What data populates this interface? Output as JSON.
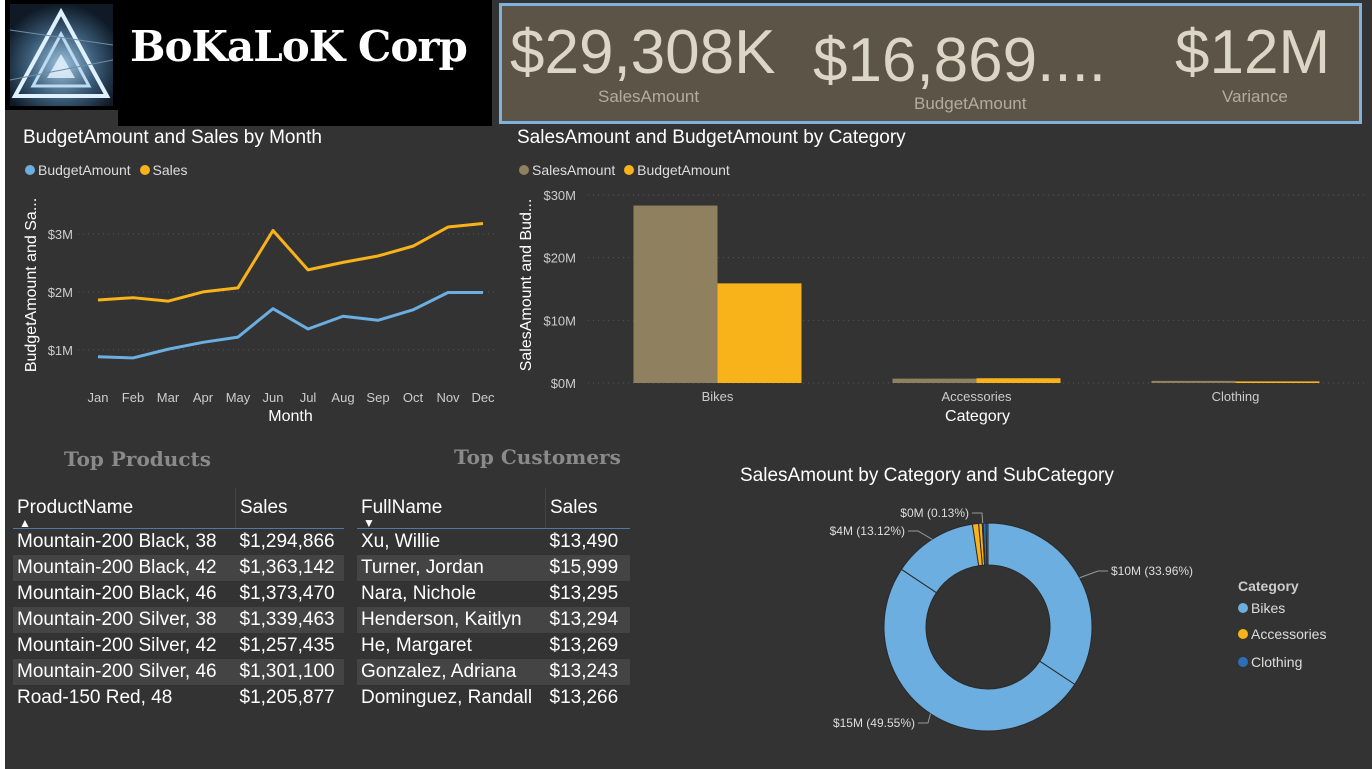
{
  "header": {
    "company_name": "BoKaLoK Corp",
    "logo_icon": "triangle-logo-icon",
    "kpis": [
      {
        "value": "$29,308K",
        "label": "SalesAmount"
      },
      {
        "value": "$16,869....",
        "label": "BudgetAmount"
      },
      {
        "value": "$12M",
        "label": "Variance"
      }
    ]
  },
  "colors": {
    "background": "#333333",
    "budget": "#6caee0",
    "sales": "#f8b21a",
    "sales_amount_bar": "#8f8060",
    "bikes": "#6caee0",
    "accessories": "#f8b21a",
    "clothing": "#2d6fb5"
  },
  "line_chart": {
    "title": "BudgetAmount and Sales by Month",
    "legend": [
      "BudgetAmount",
      "Sales"
    ]
  },
  "bar_chart": {
    "title": "SalesAmount and BudgetAmount by Category",
    "legend": [
      "SalesAmount",
      "BudgetAmount"
    ]
  },
  "donut_chart": {
    "title": "SalesAmount by Category and SubCategory",
    "legend_title": "Category",
    "legend": [
      "Bikes",
      "Accessories",
      "Clothing"
    ]
  },
  "chart_data": [
    {
      "type": "line",
      "title": "BudgetAmount and Sales by Month",
      "xlabel": "Month",
      "ylabel": "BudgetAmount and Sa...",
      "x": [
        "Jan",
        "Feb",
        "Mar",
        "Apr",
        "May",
        "Jun",
        "Jul",
        "Aug",
        "Sep",
        "Oct",
        "Nov",
        "Dec"
      ],
      "yticks": [
        "$1M",
        "$2M",
        "$3M"
      ],
      "ytick_values": [
        1000000,
        2000000,
        3000000
      ],
      "ylim": [
        600000,
        3500000
      ],
      "grid": true,
      "legend_position": "top-left",
      "series": [
        {
          "name": "BudgetAmount",
          "color": "#6caee0",
          "values": [
            880000,
            860000,
            1010000,
            1130000,
            1220000,
            1710000,
            1360000,
            1580000,
            1510000,
            1690000,
            1990000,
            1990000
          ]
        },
        {
          "name": "Sales",
          "color": "#f8b21a",
          "values": [
            1860000,
            1900000,
            1840000,
            2000000,
            2070000,
            3060000,
            2380000,
            2510000,
            2620000,
            2790000,
            3120000,
            3180000
          ]
        }
      ]
    },
    {
      "type": "bar",
      "title": "SalesAmount and BudgetAmount by Category",
      "xlabel": "Category",
      "ylabel": "SalesAmount and Bud...",
      "categories": [
        "Bikes",
        "Accessories",
        "Clothing"
      ],
      "yticks": [
        "$0M",
        "$10M",
        "$20M",
        "$30M"
      ],
      "ytick_values": [
        0,
        10000000,
        20000000,
        30000000
      ],
      "ylim": [
        0,
        30000000
      ],
      "grid": true,
      "legend_position": "top-left",
      "series": [
        {
          "name": "SalesAmount",
          "color": "#8f8060",
          "values": [
            28320000,
            700000,
            340000
          ]
        },
        {
          "name": "BudgetAmount",
          "color": "#f8b21a",
          "values": [
            15900000,
            760000,
            260000
          ]
        }
      ]
    },
    {
      "type": "pie",
      "title": "SalesAmount by Category and SubCategory",
      "legend_title": "Category",
      "legend_position": "right",
      "slices": [
        {
          "category": "Bikes",
          "label": "$10M (33.96%)",
          "percent": 33.96,
          "color": "#6caee0"
        },
        {
          "category": "Bikes",
          "label": "$15M (49.55%)",
          "percent": 49.55,
          "color": "#6caee0"
        },
        {
          "category": "Bikes",
          "label": "$4M (13.12%)",
          "percent": 13.12,
          "color": "#6caee0"
        },
        {
          "category": "Accessories",
          "label": "",
          "percent": 0.95,
          "color": "#f8b21a"
        },
        {
          "category": "Accessories",
          "label": "",
          "percent": 0.55,
          "color": "#f8b21a"
        },
        {
          "category": "Accessories",
          "label": "$0M (0.13%)",
          "percent": 0.13,
          "color": "#f8b21a"
        },
        {
          "category": "Clothing",
          "label": "",
          "percent": 0.45,
          "color": "#2d6fb5"
        },
        {
          "category": "Clothing",
          "label": "",
          "percent": 0.29,
          "color": "#2d6fb5"
        }
      ]
    },
    {
      "type": "table",
      "title": "Top Products",
      "columns": [
        "ProductName",
        "Sales"
      ],
      "rows": [
        [
          "Mountain-200 Black, 38",
          "$1,294,866"
        ],
        [
          "Mountain-200 Black, 42",
          "$1,363,142"
        ],
        [
          "Mountain-200 Black, 46",
          "$1,373,470"
        ],
        [
          "Mountain-200 Silver, 38",
          "$1,339,463"
        ],
        [
          "Mountain-200 Silver, 42",
          "$1,257,435"
        ],
        [
          "Mountain-200 Silver, 46",
          "$1,301,100"
        ],
        [
          "Road-150 Red, 48",
          "$1,205,877"
        ]
      ]
    },
    {
      "type": "table",
      "title": "Top Customers",
      "columns": [
        "FullName",
        "Sales"
      ],
      "rows": [
        [
          "Xu, Willie",
          "$13,490"
        ],
        [
          "Turner, Jordan",
          "$15,999"
        ],
        [
          "Nara, Nichole",
          "$13,295"
        ],
        [
          "Henderson, Kaitlyn",
          "$13,294"
        ],
        [
          "He, Margaret",
          "$13,269"
        ],
        [
          "Gonzalez, Adriana",
          "$13,243"
        ],
        [
          "Dominguez, Randall",
          "$13,266"
        ]
      ]
    }
  ]
}
